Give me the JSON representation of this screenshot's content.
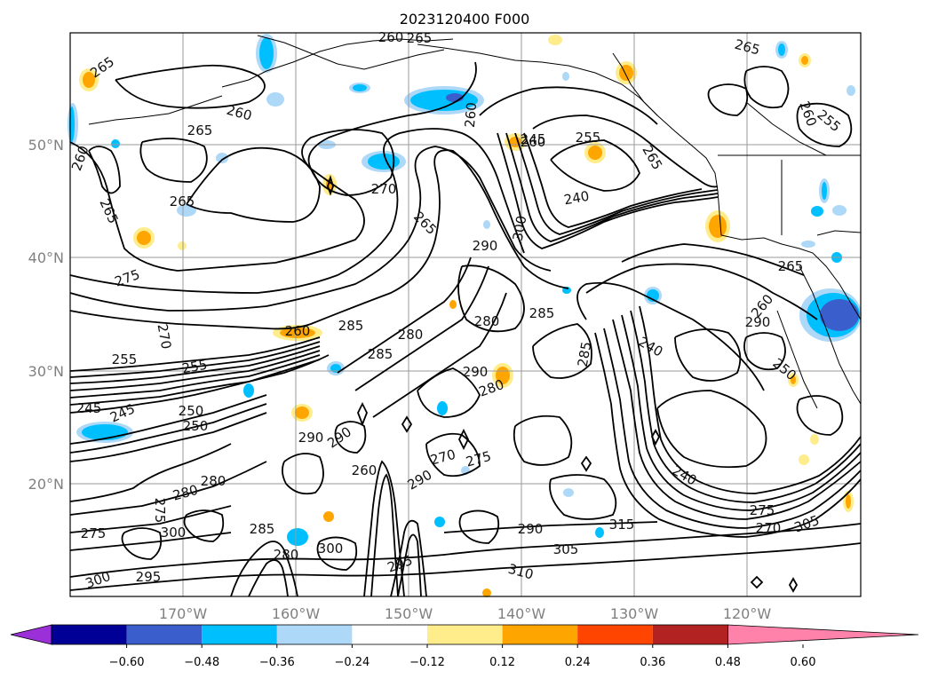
{
  "title": "2023120400 F000",
  "lat_labels": [
    "50°N",
    "40°N",
    "30°N",
    "20°N"
  ],
  "lon_labels": [
    "170°W",
    "160°W",
    "150°W",
    "140°W",
    "130°W",
    "120°W"
  ],
  "colorbar": {
    "colors": [
      "#9b30d9",
      "#000096",
      "#3a5fcd",
      "#00bfff",
      "#add8f8",
      "#ffffff",
      "#ffec8b",
      "#ffa500",
      "#ff4500",
      "#b22222",
      "#ff82ab"
    ],
    "tick_labels": [
      "−0.60",
      "−0.48",
      "−0.36",
      "−0.24",
      "−0.12",
      "0.12",
      "0.24",
      "0.36",
      "0.48",
      "0.60"
    ]
  },
  "contour_labels": [
    "265",
    "260",
    "265",
    "260",
    "265",
    "265",
    "270",
    "265",
    "260",
    "265",
    "260",
    "245",
    "255",
    "240",
    "265",
    "265",
    "255",
    "260",
    "290",
    "300",
    "265",
    "260",
    "290",
    "280",
    "280",
    "285",
    "275",
    "255",
    "245",
    "270",
    "285",
    "290",
    "280",
    "290",
    "285",
    "240",
    "260",
    "255",
    "250",
    "250",
    "245",
    "280",
    "285",
    "290",
    "275",
    "270",
    "275",
    "280",
    "285",
    "280",
    "290",
    "305",
    "310",
    "300",
    "300",
    "295",
    "275",
    "300",
    "295",
    "260",
    "290",
    "240",
    "275",
    "270",
    "260",
    "250",
    "305",
    "315"
  ]
}
